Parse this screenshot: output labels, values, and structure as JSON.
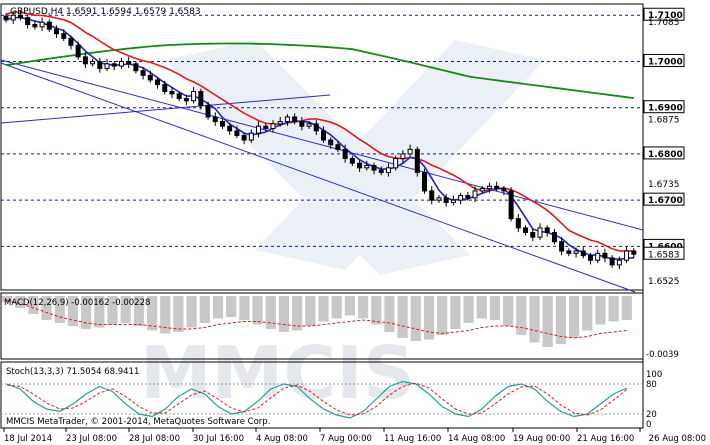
{
  "main_panel": {
    "header": "GBPUSD,H4  1.6591 1.6594 1.6579 1.6583",
    "price_labels": [
      "1.7100",
      "1.7085",
      "1.7000",
      "1.6900",
      "1.6875",
      "1.6800",
      "1.6735",
      "1.6700",
      "1.6600",
      "1.6583",
      "1.6525"
    ],
    "level_badges": [
      "1.7100",
      "1.7000",
      "1.6900",
      "1.6800",
      "1.6700",
      "1.6600"
    ],
    "current_price": "1.6583"
  },
  "macd_panel": {
    "header": "MACD(12,26,9) -0.00162 -0.00228",
    "min_label": "-0.0039"
  },
  "stoch_panel": {
    "header": "Stoch(13,3,3) 71.5054 68.9411",
    "levels": [
      "100",
      "80",
      "20",
      "0"
    ]
  },
  "footer": {
    "copyright": "MMCIS MetaTrader, © 2001-2014, MetaQuotes Software Corp."
  },
  "watermark": {
    "text": "MMCIS"
  },
  "x_axis": {
    "labels": [
      "18 Jul 2014",
      "23 Jul 08:00",
      "28 Jul 08:00",
      "30 Jul 16:00",
      "4 Aug 08:00",
      "7 Aug 00:00",
      "11 Aug 16:00",
      "14 Aug 08:00",
      "19 Aug 00:00",
      "21 Aug 16:00",
      "26 Aug 08:00"
    ]
  },
  "colors": {
    "candles": "#000000",
    "ma_fast": "#1f25c8",
    "ma_mid": "#e01b1b",
    "ma_slow": "#168a16",
    "channel": "#2b2bc9",
    "levels": "#1a1a8c",
    "macd_hist": "#c8c8c8",
    "macd_signal": "#e01b1b",
    "stoch_main": "#20a0a0",
    "stoch_signal": "#e01b1b"
  },
  "chart_data": [
    {
      "type": "candlestick",
      "title": "GBPUSD,H4",
      "ylim": [
        1.651,
        1.712
      ],
      "close_series": [
        1.709,
        1.71,
        1.7095,
        1.708,
        1.7075,
        1.7085,
        1.707,
        1.706,
        1.705,
        1.7035,
        1.701,
        1.6995,
        1.7,
        1.6985,
        1.6995,
        1.699,
        1.7,
        1.6995,
        1.698,
        1.697,
        1.696,
        1.695,
        1.6935,
        1.693,
        1.692,
        1.6915,
        1.6935,
        1.6905,
        1.688,
        1.687,
        1.686,
        1.685,
        1.684,
        1.683,
        1.6845,
        1.686,
        1.6855,
        1.6865,
        1.687,
        1.688,
        1.687,
        1.686,
        1.6865,
        1.685,
        1.683,
        1.682,
        1.681,
        1.679,
        1.678,
        1.677,
        1.6775,
        1.6765,
        1.676,
        1.677,
        1.679,
        1.68,
        1.681,
        1.676,
        1.672,
        1.67,
        1.6705,
        1.6695,
        1.67,
        1.671,
        1.6705,
        1.672,
        1.6725,
        1.673,
        1.6725,
        1.672,
        1.666,
        1.664,
        1.663,
        1.662,
        1.664,
        1.663,
        1.661,
        1.659,
        1.6585,
        1.659,
        1.658,
        1.657,
        1.6585,
        1.6575,
        1.656,
        1.657,
        1.659,
        1.6583
      ],
      "horizontal_levels": [
        1.71,
        1.7,
        1.69,
        1.68,
        1.67,
        1.66
      ]
    },
    {
      "type": "bar",
      "title": "MACD(12,26,9)",
      "series": [
        {
          "name": "MACD",
          "values": [
            -0.0004,
            -0.0008,
            -0.0012,
            -0.0016,
            -0.0018,
            -0.002,
            -0.0022,
            -0.0021,
            -0.0019,
            -0.0018,
            -0.002,
            -0.0023,
            -0.0025,
            -0.0024,
            -0.0021,
            -0.0018,
            -0.0015,
            -0.0014,
            -0.0016,
            -0.0019,
            -0.0022,
            -0.0024,
            -0.0023,
            -0.002,
            -0.0017,
            -0.0015,
            -0.0013,
            -0.0015,
            -0.0019,
            -0.0024,
            -0.0028,
            -0.003,
            -0.0029,
            -0.0026,
            -0.0022,
            -0.0018,
            -0.0015,
            -0.0016,
            -0.002,
            -0.0026,
            -0.0031,
            -0.0034,
            -0.0032,
            -0.0028,
            -0.0023,
            -0.0019,
            -0.0017,
            -0.0016
          ]
        },
        {
          "name": "Signal",
          "values": [
            -0.0003,
            -0.0005,
            -0.0008,
            -0.0011,
            -0.0014,
            -0.0016,
            -0.0018,
            -0.0019,
            -0.0019,
            -0.0019,
            -0.0019,
            -0.002,
            -0.0021,
            -0.0022,
            -0.0022,
            -0.0021,
            -0.0019,
            -0.0018,
            -0.0017,
            -0.0017,
            -0.0018,
            -0.0019,
            -0.002,
            -0.002,
            -0.0019,
            -0.0018,
            -0.0017,
            -0.0016,
            -0.0017,
            -0.0018,
            -0.002,
            -0.0022,
            -0.0024,
            -0.0025,
            -0.0024,
            -0.0023,
            -0.0021,
            -0.002,
            -0.002,
            -0.0021,
            -0.0023,
            -0.0025,
            -0.0027,
            -0.0028,
            -0.0027,
            -0.0025,
            -0.0024,
            -0.0023
          ]
        }
      ]
    },
    {
      "type": "line",
      "title": "Stoch(13,3,3)",
      "ylim": [
        0,
        100
      ],
      "series": [
        {
          "name": "Main",
          "values": [
            80,
            70,
            45,
            30,
            25,
            40,
            60,
            75,
            65,
            40,
            20,
            15,
            30,
            55,
            70,
            60,
            35,
            20,
            25,
            45,
            70,
            80,
            75,
            50,
            30,
            18,
            12,
            25,
            50,
            75,
            85,
            80,
            60,
            35,
            20,
            15,
            30,
            55,
            75,
            80,
            70,
            45,
            25,
            15,
            20,
            40,
            60,
            72
          ]
        },
        {
          "name": "Signal",
          "values": [
            78,
            75,
            60,
            42,
            30,
            32,
            45,
            62,
            70,
            55,
            35,
            22,
            22,
            40,
            58,
            66,
            50,
            32,
            24,
            32,
            52,
            72,
            78,
            65,
            45,
            28,
            18,
            20,
            35,
            58,
            75,
            82,
            72,
            50,
            30,
            20,
            22,
            40,
            60,
            74,
            76,
            60,
            38,
            22,
            18,
            28,
            48,
            69
          ]
        }
      ]
    }
  ]
}
